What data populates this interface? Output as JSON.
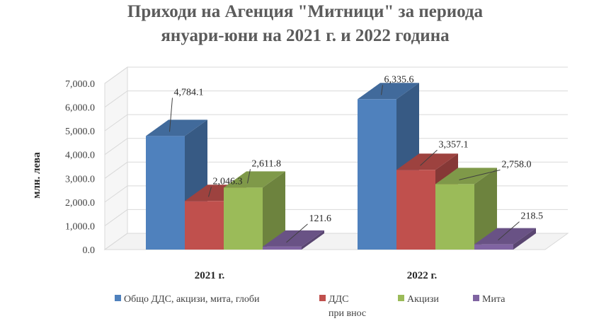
{
  "chart_data": {
    "type": "bar",
    "title": [
      "Приходи на Агенция \"Митници\" за периода",
      "януари-юни на 2021 г. и 2022 година"
    ],
    "ylabel": "млн. лева",
    "xlabel": "",
    "categories": [
      "2021 г.",
      "2022 г."
    ],
    "yticks": [
      "0.0",
      "1,000.0",
      "2,000.0",
      "3,000.0",
      "4,000.0",
      "5,000.0",
      "6,000.0",
      "7,000.0"
    ],
    "ylim": [
      0,
      7000
    ],
    "grid": true,
    "legend_position": "bottom",
    "series": [
      {
        "name": "Общо ДДС, акцизи, мита, глоби",
        "values": [
          4784.1,
          6335.6
        ],
        "labels": [
          "4,784.1",
          "6,335.6"
        ],
        "color": "#4f81bd"
      },
      {
        "name": "ДДС при внос",
        "name_lines": [
          "ДДС",
          "при внос"
        ],
        "values": [
          2046.3,
          3357.1
        ],
        "labels": [
          "2,046.3",
          "3,357.1"
        ],
        "color": "#c0504d"
      },
      {
        "name": "Акцизи",
        "values": [
          2611.8,
          2758.0
        ],
        "labels": [
          "2,611.8",
          "2,758.0"
        ],
        "color": "#9bbb59"
      },
      {
        "name": "Мита",
        "values": [
          121.6,
          218.5
        ],
        "labels": [
          "121.6",
          "218.5"
        ],
        "color": "#8064a2"
      }
    ]
  }
}
